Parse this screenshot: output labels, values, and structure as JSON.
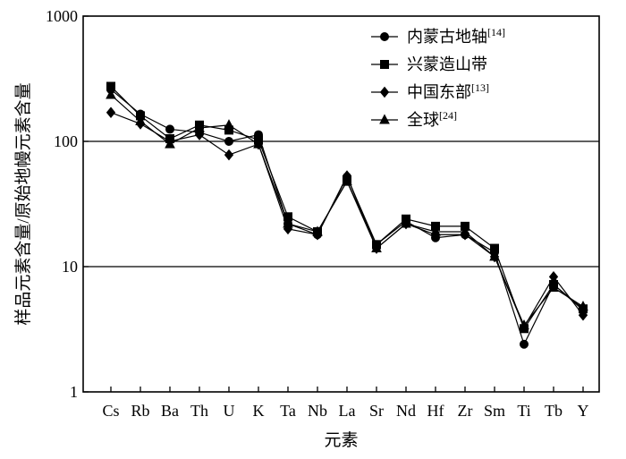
{
  "chart_data": {
    "type": "line",
    "title": "",
    "xlabel": "元素",
    "ylabel": "样品元素含量/原始地幔元素含量",
    "y_scale": "log",
    "ylim": [
      1,
      1000
    ],
    "y_ticks": [
      {
        "value": 1,
        "label": "1"
      },
      {
        "value": 10,
        "label": "10"
      },
      {
        "value": 100,
        "label": "100"
      },
      {
        "value": 1000,
        "label": "1000"
      }
    ],
    "gridlines_y": [
      10,
      100
    ],
    "legend_position": "top-right",
    "categories": [
      "Cs",
      "Rb",
      "Ba",
      "Th",
      "U",
      "K",
      "Ta",
      "Nb",
      "La",
      "Sr",
      "Nd",
      "Hf",
      "Zr",
      "Sm",
      "Ti",
      "Tb",
      "Y"
    ],
    "series": [
      {
        "name": "内蒙古地轴",
        "ref": "[14]",
        "marker": "circle",
        "values": [
          260,
          165,
          125,
          118,
          100,
          113,
          22,
          18,
          52,
          15,
          23,
          17,
          18,
          13,
          2.4,
          7.2,
          4.5
        ]
      },
      {
        "name": "兴蒙造山带",
        "ref": "",
        "marker": "square",
        "values": [
          275,
          160,
          105,
          135,
          123,
          103,
          25,
          19,
          48,
          15,
          24,
          21,
          21,
          14,
          3.2,
          7.2,
          4.6
        ]
      },
      {
        "name": "中国东部",
        "ref": "[13]",
        "marker": "diamond",
        "values": [
          170,
          138,
          100,
          113,
          78,
          95,
          20,
          18,
          53,
          14,
          22,
          18,
          18,
          12,
          3.3,
          8.3,
          4.1
        ]
      },
      {
        "name": "全球",
        "ref": "[24]",
        "marker": "triangle",
        "values": [
          235,
          145,
          95,
          128,
          135,
          95,
          22,
          19,
          48,
          14,
          22,
          19,
          19,
          12,
          3.4,
          6.8,
          4.8
        ]
      }
    ]
  }
}
